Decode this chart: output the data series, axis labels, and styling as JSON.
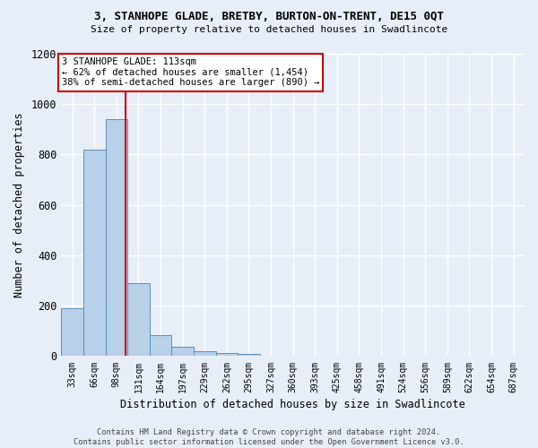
{
  "title": "3, STANHOPE GLADE, BRETBY, BURTON-ON-TRENT, DE15 0QT",
  "subtitle": "Size of property relative to detached houses in Swadlincote",
  "xlabel": "Distribution of detached houses by size in Swadlincote",
  "ylabel": "Number of detached properties",
  "bar_labels": [
    "33sqm",
    "66sqm",
    "98sqm",
    "131sqm",
    "164sqm",
    "197sqm",
    "229sqm",
    "262sqm",
    "295sqm",
    "327sqm",
    "360sqm",
    "393sqm",
    "425sqm",
    "458sqm",
    "491sqm",
    "524sqm",
    "556sqm",
    "589sqm",
    "622sqm",
    "654sqm",
    "687sqm"
  ],
  "bar_values": [
    190,
    820,
    940,
    290,
    85,
    37,
    18,
    14,
    10,
    0,
    0,
    0,
    0,
    0,
    0,
    0,
    0,
    0,
    0,
    0,
    0
  ],
  "bar_color": "#b8d0e8",
  "bar_edgecolor": "#5a8fc0",
  "background_color": "#e8eef8",
  "fig_background_color": "#e8eef8",
  "grid_color": "#ffffff",
  "property_line_color": "#cc0000",
  "annotation_text": "3 STANHOPE GLADE: 113sqm\n← 62% of detached houses are smaller (1,454)\n38% of semi-detached houses are larger (890) →",
  "annotation_box_color": "#ffffff",
  "annotation_box_edgecolor": "#cc0000",
  "footer": "Contains HM Land Registry data © Crown copyright and database right 2024.\nContains public sector information licensed under the Open Government Licence v3.0.",
  "ylim": [
    0,
    1200
  ],
  "yticks": [
    0,
    200,
    400,
    600,
    800,
    1000,
    1200
  ],
  "bin_width": 33,
  "n_bars": 21,
  "property_sqm": 113
}
